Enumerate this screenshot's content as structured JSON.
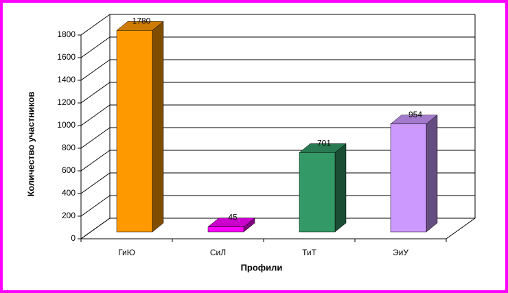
{
  "chart_data": {
    "type": "bar3d",
    "ylabel": "Количество участников",
    "xlabel": "Профили",
    "categories": [
      "ГиЮ",
      "СиЛ",
      "ТиТ",
      "ЭиУ"
    ],
    "values": [
      1780,
      45,
      701,
      954
    ],
    "colors": [
      "#ff9900",
      "#ff00ff",
      "#339966",
      "#cc99ff"
    ],
    "ylim": [
      0,
      1800
    ],
    "yticks": [
      0,
      200,
      400,
      600,
      800,
      1000,
      1200,
      1400,
      1600,
      1800
    ],
    "grid": true
  }
}
